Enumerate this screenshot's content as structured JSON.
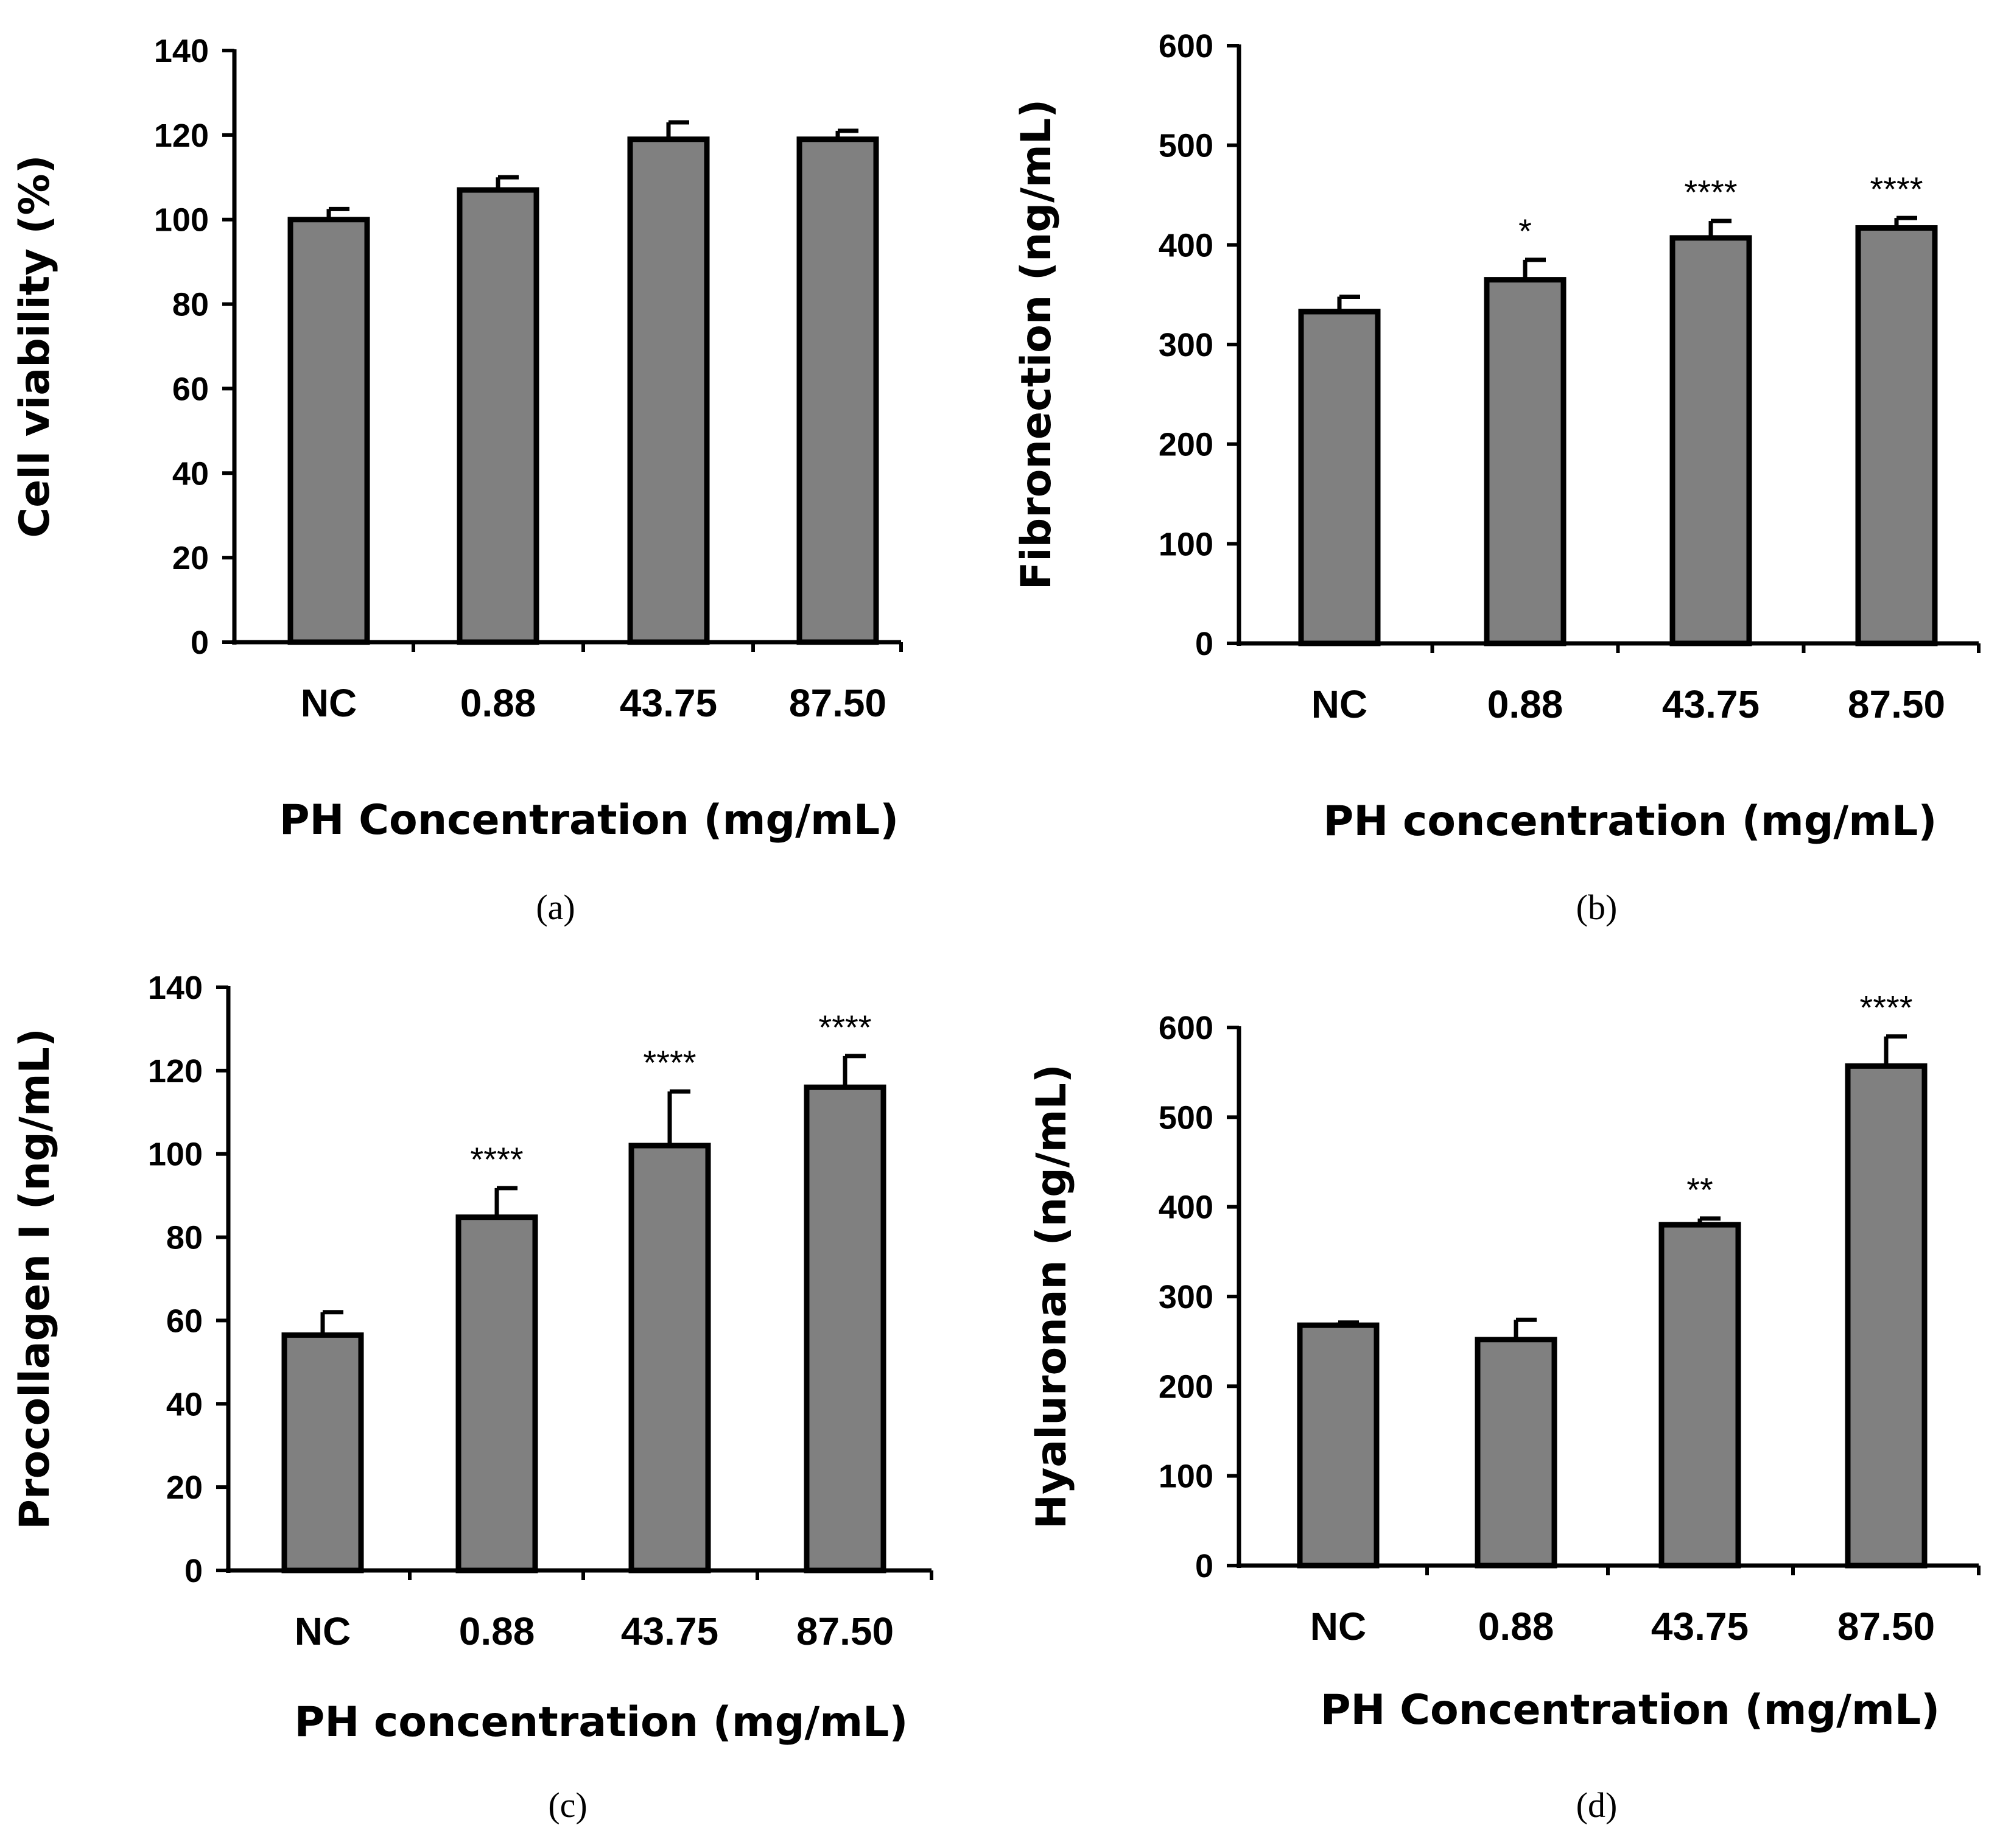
{
  "colors": {
    "bar_fill": "#808080",
    "bar_stroke": "#000000",
    "axis": "#000000"
  },
  "chart_data": [
    {
      "id": "a",
      "type": "bar",
      "panel_label": "(a)",
      "categories": [
        "NC",
        "0.88",
        "43.75",
        "87.50"
      ],
      "values": [
        100,
        107,
        119,
        119
      ],
      "errors": [
        2.5,
        3,
        4,
        2
      ],
      "significance": [
        "",
        "",
        "",
        ""
      ],
      "ylim": [
        0,
        140
      ],
      "yticks": [
        0,
        20,
        40,
        60,
        80,
        100,
        120,
        140
      ],
      "ylabel": "Cell viability (%)",
      "xlabel": "PH Concentration (mg/mL)"
    },
    {
      "id": "b",
      "type": "bar",
      "panel_label": "(b)",
      "categories": [
        "NC",
        "0.88",
        "43.75",
        "87.50"
      ],
      "values": [
        333,
        365,
        407,
        417
      ],
      "errors": [
        15,
        20,
        17,
        10
      ],
      "significance": [
        "",
        "*",
        "****",
        "****"
      ],
      "ylim": [
        0,
        600
      ],
      "yticks": [
        0,
        100,
        200,
        300,
        400,
        500,
        600
      ],
      "ylabel": "Fibronection (ng/mL)",
      "xlabel": "PH concentration (mg/mL)"
    },
    {
      "id": "c",
      "type": "bar",
      "panel_label": "(c)",
      "categories": [
        "NC",
        "0.88",
        "43.75",
        "87.50"
      ],
      "values": [
        56.5,
        84.8,
        102,
        116
      ],
      "errors": [
        5.5,
        7,
        13,
        7.5
      ],
      "significance": [
        "",
        "****",
        "****",
        "****"
      ],
      "ylim": [
        0,
        140
      ],
      "yticks": [
        0,
        20,
        40,
        60,
        80,
        100,
        120,
        140
      ],
      "ylabel": "Procollagen Ⅰ (ng/mL)",
      "xlabel": "PH concentration (mg/mL)"
    },
    {
      "id": "d",
      "type": "bar",
      "panel_label": "(d)",
      "categories": [
        "NC",
        "0.88",
        "43.75",
        "87.50"
      ],
      "values": [
        268,
        252,
        380,
        557
      ],
      "errors": [
        3,
        22,
        7,
        33
      ],
      "significance": [
        "",
        "",
        "**",
        "****"
      ],
      "ylim": [
        0,
        600
      ],
      "yticks": [
        0,
        100,
        200,
        300,
        400,
        500,
        600
      ],
      "ylabel": "Hyaluronan (ng/mL)",
      "xlabel": "PH Concentration (mg/mL)"
    }
  ]
}
